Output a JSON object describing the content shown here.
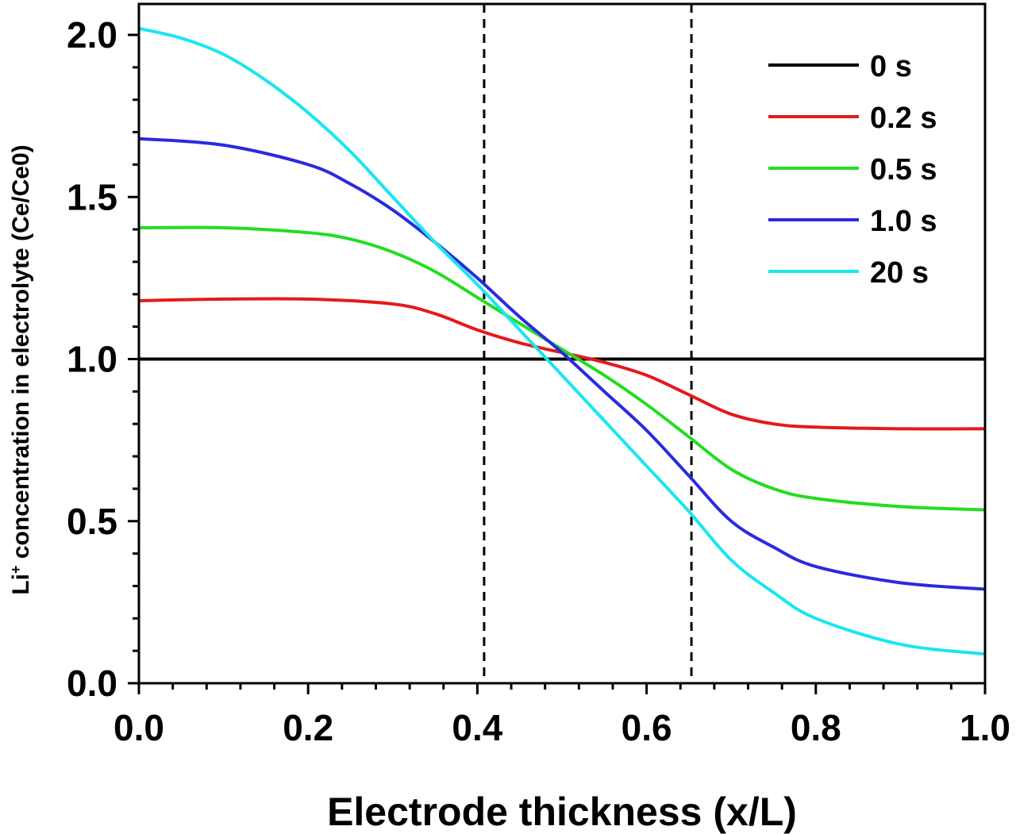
{
  "chart_data": {
    "type": "line",
    "xlabel": "Electrode thickness (x/L)",
    "ylabel_main": "Li",
    "ylabel_sup": "+",
    "ylabel_rest": " concentration in electrolyte (Ce/Ce0)",
    "xlim": [
      0,
      1
    ],
    "ylim": [
      0,
      2.1
    ],
    "x_ticks": [
      "0.0",
      "0.2",
      "0.4",
      "0.6",
      "0.8",
      "1.0"
    ],
    "y_ticks": [
      "0.0",
      "0.5",
      "1.0",
      "1.5",
      "2.0"
    ],
    "reference_lines_x": [
      0.408,
      0.653
    ],
    "grid": false,
    "legend_position": "top-right",
    "series": [
      {
        "name": "0 s",
        "color": "#000000",
        "x": [
          0,
          1
        ],
        "y": [
          1.0,
          1.0
        ]
      },
      {
        "name": "0.2 s",
        "color": "#e61919",
        "x": [
          0,
          0.1,
          0.2,
          0.3,
          0.35,
          0.4,
          0.45,
          0.5,
          0.55,
          0.6,
          0.65,
          0.7,
          0.75,
          0.8,
          0.9,
          1.0
        ],
        "y": [
          1.18,
          1.185,
          1.185,
          1.17,
          1.14,
          1.09,
          1.05,
          1.02,
          0.99,
          0.95,
          0.89,
          0.83,
          0.8,
          0.79,
          0.785,
          0.785
        ]
      },
      {
        "name": "0.5 s",
        "color": "#22dd22",
        "x": [
          0,
          0.1,
          0.2,
          0.25,
          0.3,
          0.35,
          0.4,
          0.45,
          0.5,
          0.55,
          0.6,
          0.65,
          0.7,
          0.75,
          0.8,
          0.9,
          1.0
        ],
        "y": [
          1.405,
          1.405,
          1.39,
          1.37,
          1.33,
          1.27,
          1.19,
          1.11,
          1.03,
          0.95,
          0.86,
          0.76,
          0.66,
          0.6,
          0.57,
          0.545,
          0.535
        ]
      },
      {
        "name": "1.0 s",
        "color": "#2a2ae0",
        "x": [
          0,
          0.1,
          0.2,
          0.25,
          0.3,
          0.35,
          0.4,
          0.45,
          0.5,
          0.55,
          0.6,
          0.65,
          0.7,
          0.75,
          0.8,
          0.9,
          1.0
        ],
        "y": [
          1.68,
          1.66,
          1.6,
          1.54,
          1.46,
          1.36,
          1.25,
          1.13,
          1.02,
          0.9,
          0.78,
          0.64,
          0.5,
          0.42,
          0.36,
          0.31,
          0.29
        ]
      },
      {
        "name": "20 s",
        "color": "#19e6f0",
        "x": [
          0,
          0.05,
          0.1,
          0.15,
          0.2,
          0.25,
          0.3,
          0.35,
          0.4,
          0.45,
          0.5,
          0.55,
          0.6,
          0.65,
          0.7,
          0.75,
          0.8,
          0.9,
          1.0
        ],
        "y": [
          2.02,
          1.99,
          1.94,
          1.86,
          1.76,
          1.64,
          1.5,
          1.36,
          1.23,
          1.09,
          0.95,
          0.81,
          0.67,
          0.53,
          0.38,
          0.28,
          0.2,
          0.12,
          0.09
        ]
      }
    ]
  }
}
